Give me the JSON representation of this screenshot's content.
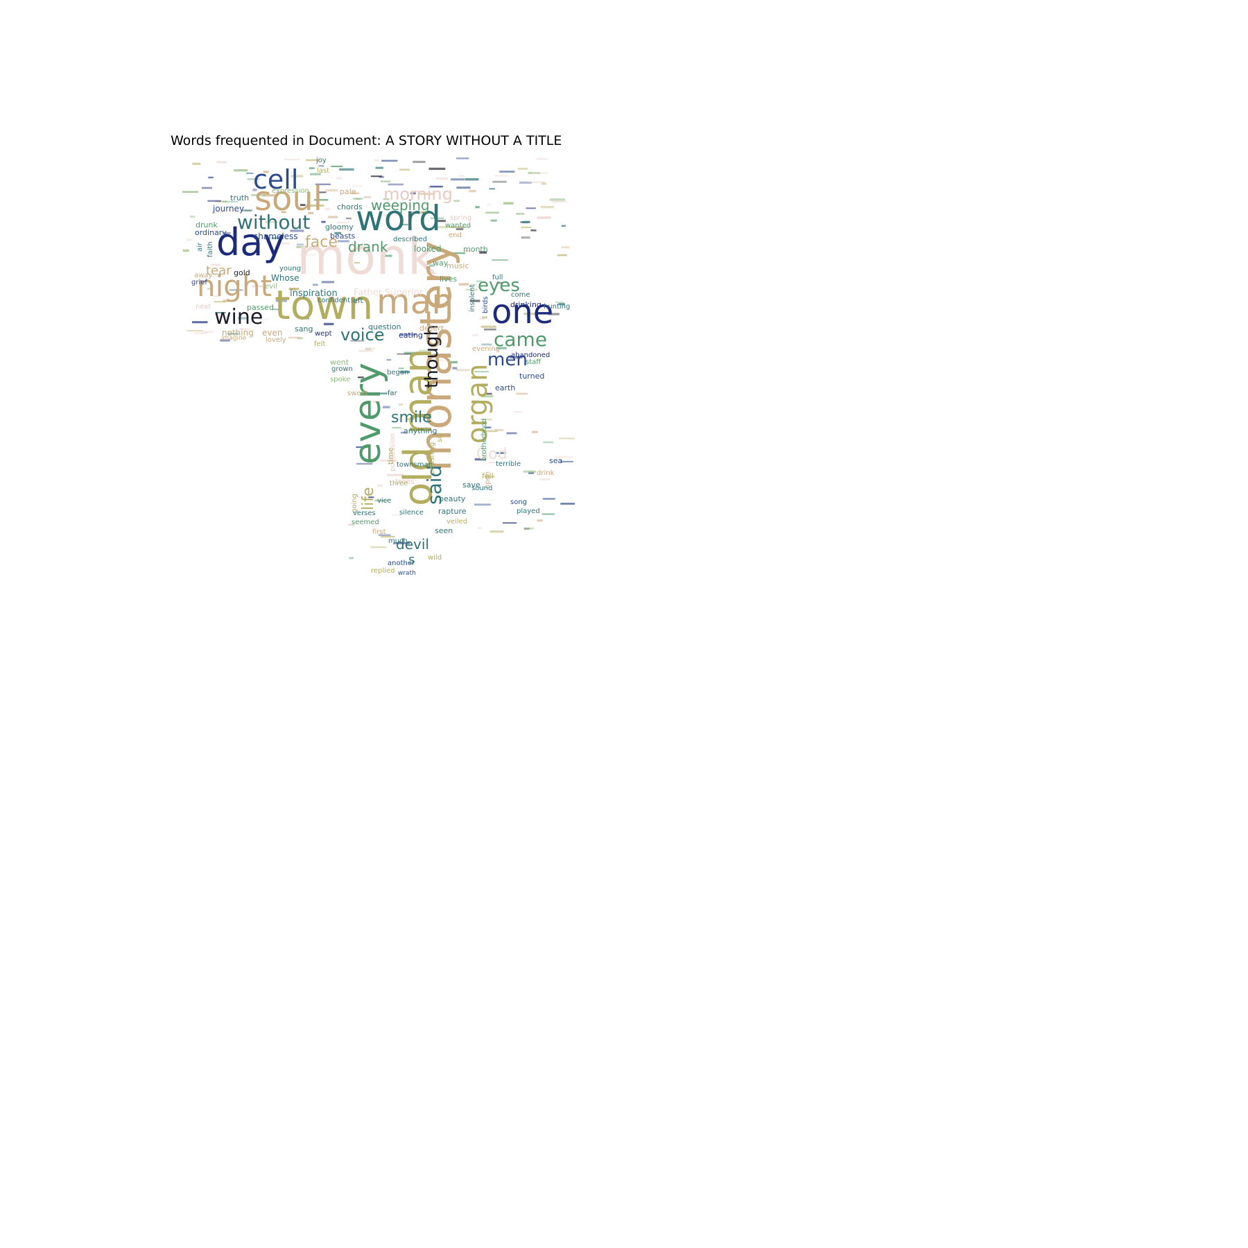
{
  "title": "Words frequented in Document: A STORY WITHOUT A TITLE",
  "palette": {
    "navy": "#1b2a7a",
    "blue": "#2a4a8c",
    "teal": "#2e7477",
    "green": "#4f9a6a",
    "olive": "#b3ad5f",
    "tan": "#c9a87a",
    "pink": "#e9c9c4",
    "lightpink": "#f0dcd7",
    "sage": "#8fb87a",
    "dark": "#1c1c28"
  },
  "words": [
    {
      "text": "monk",
      "color": "lightpink"
    },
    {
      "text": "monastery",
      "color": "tan"
    },
    {
      "text": "every",
      "color": "green"
    },
    {
      "text": "old man",
      "color": "olive"
    },
    {
      "text": "town",
      "color": "olive"
    },
    {
      "text": "word",
      "color": "teal"
    },
    {
      "text": "man",
      "color": "tan"
    },
    {
      "text": "one",
      "color": "navy"
    },
    {
      "text": "day",
      "color": "navy"
    },
    {
      "text": "soul",
      "color": "tan"
    },
    {
      "text": "night",
      "color": "tan"
    },
    {
      "text": "cell",
      "color": "blue"
    },
    {
      "text": "organ",
      "color": "olive"
    },
    {
      "text": "without",
      "color": "teal"
    },
    {
      "text": "wine",
      "color": "dark"
    },
    {
      "text": "though",
      "color": "dark"
    },
    {
      "text": "said",
      "color": "teal"
    },
    {
      "text": "came",
      "color": "green"
    },
    {
      "text": "voice",
      "color": "teal"
    },
    {
      "text": "eyes",
      "color": "green"
    },
    {
      "text": "men",
      "color": "blue"
    },
    {
      "text": "morning",
      "color": "pink"
    },
    {
      "text": "weeping",
      "color": "green"
    },
    {
      "text": "smile",
      "color": "teal"
    },
    {
      "text": "face",
      "color": "tan"
    },
    {
      "text": "drank",
      "color": "green"
    },
    {
      "text": "devil",
      "color": "teal"
    },
    {
      "text": "God",
      "color": "lightpink"
    },
    {
      "text": "tear",
      "color": "tan"
    },
    {
      "text": "life",
      "color": "olive"
    },
    {
      "text": "Father Superior",
      "color": "lightpink"
    },
    {
      "text": "inspiration",
      "color": "teal"
    },
    {
      "text": "shameless",
      "color": "blue"
    },
    {
      "text": "journey",
      "color": "blue"
    },
    {
      "text": "gloomy",
      "color": "teal"
    },
    {
      "text": "beasts",
      "color": "blue"
    },
    {
      "text": "chords",
      "color": "teal"
    },
    {
      "text": "truth",
      "color": "teal"
    },
    {
      "text": "drunk",
      "color": "green"
    },
    {
      "text": "ordinary",
      "color": "blue"
    },
    {
      "text": "joy",
      "color": "teal"
    },
    {
      "text": "last",
      "color": "olive"
    },
    {
      "text": "expression",
      "color": "sage"
    },
    {
      "text": "pale",
      "color": "tan"
    },
    {
      "text": "gold",
      "color": "dark"
    },
    {
      "text": "young",
      "color": "teal"
    },
    {
      "text": "Whose",
      "color": "teal"
    },
    {
      "text": "evil",
      "color": "sage"
    },
    {
      "text": "passed",
      "color": "green"
    },
    {
      "text": "even",
      "color": "tan"
    },
    {
      "text": "sang",
      "color": "teal"
    },
    {
      "text": "wept",
      "color": "navy"
    },
    {
      "text": "nothing",
      "color": "tan"
    },
    {
      "text": "lovely",
      "color": "tan"
    },
    {
      "text": "confident",
      "color": "teal"
    },
    {
      "text": "left",
      "color": "teal"
    },
    {
      "text": "question",
      "color": "teal"
    },
    {
      "text": "eating",
      "color": "navy"
    },
    {
      "text": "desert",
      "color": "tan"
    },
    {
      "text": "looked",
      "color": "green"
    },
    {
      "text": "month",
      "color": "green"
    },
    {
      "text": "way",
      "color": "green"
    },
    {
      "text": "lives",
      "color": "green"
    },
    {
      "text": "music",
      "color": "tan"
    },
    {
      "text": "end",
      "color": "tan"
    },
    {
      "text": "wanted",
      "color": "green"
    },
    {
      "text": "spring",
      "color": "pink"
    },
    {
      "text": "described",
      "color": "teal"
    },
    {
      "text": "full",
      "color": "teal"
    },
    {
      "text": "come",
      "color": "teal"
    },
    {
      "text": "drinking",
      "color": "navy"
    },
    {
      "text": "hunting",
      "color": "teal"
    },
    {
      "text": "insolent",
      "color": "teal"
    },
    {
      "text": "birds",
      "color": "blue"
    },
    {
      "text": "evening",
      "color": "tan"
    },
    {
      "text": "abandoned",
      "color": "navy"
    },
    {
      "text": "staff",
      "color": "green"
    },
    {
      "text": "turned",
      "color": "blue"
    },
    {
      "text": "earth",
      "color": "blue"
    },
    {
      "text": "went",
      "color": "sage"
    },
    {
      "text": "grown",
      "color": "teal"
    },
    {
      "text": "began",
      "color": "teal"
    },
    {
      "text": "spoke",
      "color": "sage"
    },
    {
      "text": "far",
      "color": "teal"
    },
    {
      "text": "sweet",
      "color": "tan"
    },
    {
      "text": "anything",
      "color": "teal"
    },
    {
      "text": "possession",
      "color": "pink"
    },
    {
      "text": "time",
      "color": "olive"
    },
    {
      "text": "going",
      "color": "olive"
    },
    {
      "text": "townsman",
      "color": "teal"
    },
    {
      "text": "trees",
      "color": "pink"
    },
    {
      "text": "three",
      "color": "olive"
    },
    {
      "text": "sea",
      "color": "blue"
    },
    {
      "text": "terrible",
      "color": "teal"
    },
    {
      "text": "drink",
      "color": "tan"
    },
    {
      "text": "fell",
      "color": "olive"
    },
    {
      "text": "save",
      "color": "teal"
    },
    {
      "text": "upon",
      "color": "tan"
    },
    {
      "text": "sound",
      "color": "teal"
    },
    {
      "text": "song",
      "color": "blue"
    },
    {
      "text": "played",
      "color": "teal"
    },
    {
      "text": "beauty",
      "color": "teal"
    },
    {
      "text": "rapture",
      "color": "teal"
    },
    {
      "text": "veiled",
      "color": "olive"
    },
    {
      "text": "seen",
      "color": "teal"
    },
    {
      "text": "silence",
      "color": "teal"
    },
    {
      "text": "vice",
      "color": "teal"
    },
    {
      "text": "verses",
      "color": "teal"
    },
    {
      "text": "seemed",
      "color": "green"
    },
    {
      "text": "first",
      "color": "tan"
    },
    {
      "text": "much",
      "color": "teal"
    },
    {
      "text": "wild",
      "color": "olive"
    },
    {
      "text": "another",
      "color": "blue"
    },
    {
      "text": "replied",
      "color": "olive"
    },
    {
      "text": "wrath",
      "color": "blue"
    },
    {
      "text": "s",
      "color": "teal"
    },
    {
      "text": "perishing",
      "color": "olive"
    },
    {
      "text": "sit",
      "color": "olive"
    },
    {
      "text": "brotherhood",
      "color": "green"
    },
    {
      "text": "felt",
      "color": "olive"
    },
    {
      "text": "faith",
      "color": "teal"
    },
    {
      "text": "air",
      "color": "teal"
    },
    {
      "text": "away",
      "color": "tan"
    },
    {
      "text": "grief",
      "color": "blue"
    },
    {
      "text": "next",
      "color": "pink"
    },
    {
      "text": "imagine",
      "color": "tan"
    }
  ]
}
